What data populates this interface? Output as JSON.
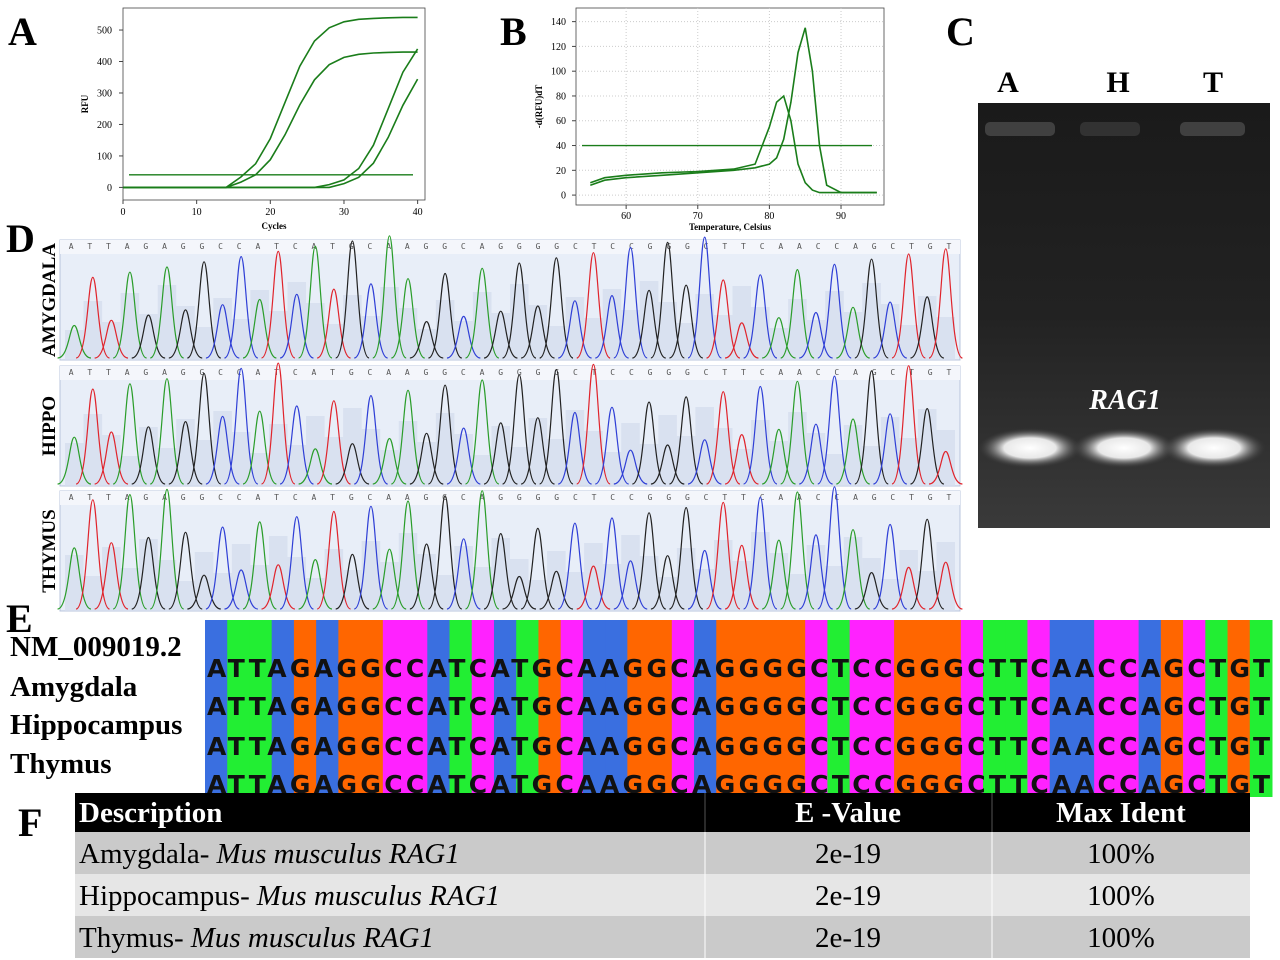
{
  "panel_labels": [
    "A",
    "B",
    "C",
    "D",
    "E",
    "F"
  ],
  "chart_data": [
    {
      "type": "line",
      "xlabel": "Cycles",
      "ylabel": "RFU",
      "x": [
        0,
        2,
        4,
        6,
        8,
        10,
        12,
        14,
        16,
        18,
        20,
        22,
        24,
        26,
        28,
        30,
        32,
        34,
        36,
        38,
        40
      ],
      "series": [
        {
          "color": "#1a7d1a",
          "values": [
            0,
            0,
            0,
            0,
            0,
            0,
            0,
            0,
            33,
            75,
            155,
            270,
            385,
            465,
            507,
            526,
            534,
            537,
            539,
            540,
            540
          ]
        },
        {
          "color": "#1a7d1a",
          "values": [
            0,
            0,
            0,
            0,
            0,
            0,
            0,
            0,
            17,
            40,
            88,
            167,
            262,
            342,
            390,
            413,
            423,
            427,
            429,
            430,
            430
          ]
        },
        {
          "color": "#1a7d1a",
          "values": [
            0,
            0,
            0,
            0,
            0,
            0,
            0,
            0,
            0,
            0,
            0,
            0,
            0,
            0,
            9,
            24,
            60,
            134,
            250,
            366,
            440
          ]
        },
        {
          "color": "#1a7d1a",
          "values": [
            0,
            0,
            0,
            0,
            0,
            0,
            0,
            0,
            0,
            0,
            0,
            0,
            0,
            0,
            0,
            12,
            32,
            77,
            159,
            261,
            344
          ]
        }
      ],
      "threshold": 40,
      "xlim": [
        0,
        41
      ],
      "ylim": [
        -40,
        570
      ],
      "xticks": [
        0,
        10,
        20,
        30,
        40
      ],
      "yticks": [
        0,
        100,
        200,
        300,
        400,
        500
      ],
      "grid": false
    },
    {
      "type": "line",
      "xlabel": "Temperature, Celsius",
      "ylabel": "-d(RFU)dT",
      "x": [
        55,
        57,
        60,
        65,
        70,
        75,
        78,
        80,
        81,
        82,
        83,
        84,
        85,
        86,
        87,
        88,
        90,
        95
      ],
      "series": [
        {
          "color": "#1a7d1a",
          "values": [
            8,
            12,
            14,
            16,
            18,
            20,
            22,
            25,
            30,
            45,
            75,
            115,
            135,
            100,
            40,
            8,
            2,
            2
          ]
        },
        {
          "color": "#1a7d1a",
          "values": [
            10,
            14,
            16,
            18,
            19,
            21,
            25,
            55,
            75,
            80,
            60,
            25,
            10,
            4,
            2,
            2,
            2,
            2
          ]
        }
      ],
      "threshold": 40,
      "xlim": [
        53,
        96
      ],
      "ylim": [
        -8,
        151
      ],
      "xticks": [
        60,
        70,
        80,
        90
      ],
      "yticks": [
        0,
        20,
        40,
        60,
        80,
        100,
        120,
        140
      ],
      "grid": true
    }
  ],
  "gel": {
    "lanes": [
      "A",
      "H",
      "T"
    ],
    "band_label": "RAG1"
  },
  "chromatograms": [
    {
      "label": "AMYGDALA",
      "bases": "ATTAGAGGCCATCATGCAAGGCAGGGGCTCCGGGCTTCAACCAGCTGT"
    },
    {
      "label": "HIPPO",
      "bases": "ATTAGAGGCCATCATGCAAGGCAGGGGCTCCGGGCTTCAACCAGCTGT"
    },
    {
      "label": "THYMUS",
      "bases": "ATTAGAGGCCATCATGCAAGGCAGGGGCTCCGGGCTTCAACCAGCTGT"
    }
  ],
  "alignment": {
    "rows": [
      {
        "name": "NM_009019.2",
        "sequence": "ATTAGAGGCCATCATGCAAGGCAGGGGCTCCGGGCTTCAACCAGCTGT"
      },
      {
        "name": "Amygdala",
        "sequence": "ATTAGAGGCCATCATGCAAGGCAGGGGCTCCGGGCTTCAACCAGCTGT"
      },
      {
        "name": "Hippocampus",
        "sequence": "ATTAGAGGCCATCATGCAAGGCAGGGGCTCCGGGCTTCAACCAGCTGT"
      },
      {
        "name": "Thymus",
        "sequence": "ATTAGAGGCCATCATGCAAGGCAGGGGCTCCGGGCTTCAACCAGCTGT"
      }
    ]
  },
  "table": {
    "header": [
      "Description",
      "E -Value",
      "Max Ident"
    ],
    "rows": [
      [
        "Amygdala-",
        "Mus musculus RAG1",
        "2e-19",
        "100%"
      ],
      [
        "Hippocampus-",
        "Mus musculus RAG1",
        "2e-19",
        "100%"
      ],
      [
        "Thymus-",
        "Mus musculus RAG1",
        "2e-19",
        "100%"
      ]
    ]
  }
}
